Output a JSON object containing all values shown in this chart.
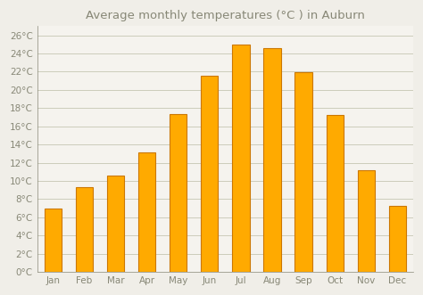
{
  "title": "Average monthly temperatures (°C ) in Auburn",
  "months": [
    "Jan",
    "Feb",
    "Mar",
    "Apr",
    "May",
    "Jun",
    "Jul",
    "Aug",
    "Sep",
    "Oct",
    "Nov",
    "Dec"
  ],
  "values": [
    7.0,
    9.3,
    10.6,
    13.1,
    17.3,
    21.6,
    25.0,
    24.6,
    21.9,
    17.2,
    11.2,
    7.3
  ],
  "bar_color": "#FFAA00",
  "bar_edge_color": "#CC7700",
  "background_color": "#F0EEE8",
  "plot_bg_color": "#F5F3EE",
  "grid_color": "#CCCCBB",
  "text_color": "#888877",
  "title_color": "#888877",
  "axis_color": "#888877",
  "ylim": [
    0,
    27
  ],
  "yticks": [
    0,
    2,
    4,
    6,
    8,
    10,
    12,
    14,
    16,
    18,
    20,
    22,
    24,
    26
  ],
  "title_fontsize": 9.5,
  "tick_fontsize": 7.5
}
